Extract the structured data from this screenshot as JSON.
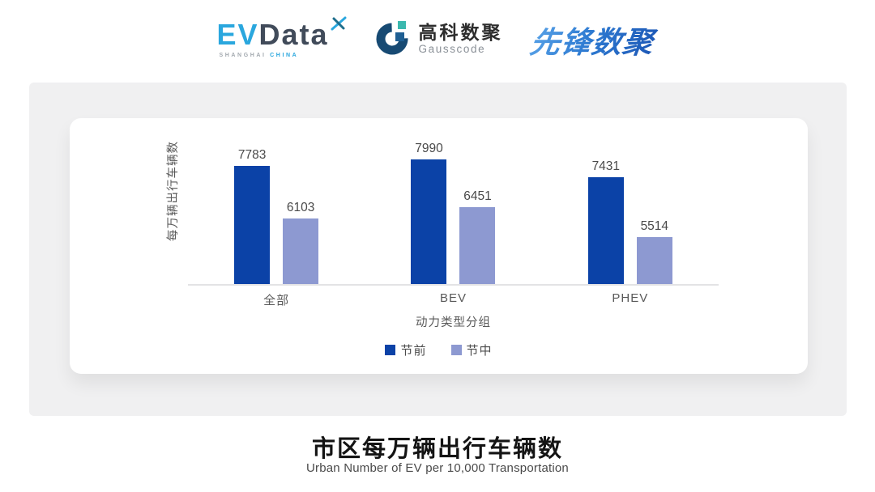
{
  "header": {
    "evdata": {
      "ev": "EV",
      "data": "Data",
      "sub_left": "SHANGHAI",
      "sub_right": "CHINA"
    },
    "gausscode": {
      "cn": "高科数聚",
      "en": "Gausscode"
    },
    "xianfeng": {
      "text": "先锋数聚"
    }
  },
  "chart_data": {
    "type": "bar",
    "categories": [
      "全部",
      "BEV",
      "PHEV"
    ],
    "series": [
      {
        "name": "节前",
        "color": "#0B42A7",
        "values": [
          7783,
          7990,
          7431
        ]
      },
      {
        "name": "节中",
        "color": "#8D99D1",
        "values": [
          6103,
          6451,
          5514
        ]
      }
    ],
    "ylabel": "每万辆出行车辆数",
    "xlabel": "动力类型分组",
    "ylim": [
      4000,
      8200
    ],
    "grid": false,
    "legend_position": "bottom",
    "value_labels": true
  },
  "footer": {
    "title": "市区每万辆出行车辆数",
    "subtitle": "Urban Number of EV per 10,000 Transportation"
  },
  "colors": {
    "bar_dark": "#0B42A7",
    "bar_light": "#8D99D1",
    "panel_bg": "#F0F0F1",
    "card_bg": "#FFFFFF",
    "axis_line": "#E3E3E5",
    "evdata_blue": "#2AA7DE",
    "evdata_dark": "#414B5A",
    "xianfeng_blue": "#2B74CE"
  }
}
